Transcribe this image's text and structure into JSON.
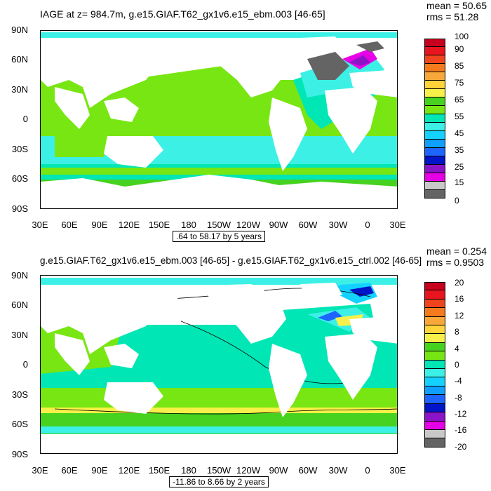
{
  "top": {
    "title": "IAGE at z= 984.7m, g.e15.GIAF.T62_gx1v6.e15_ebm.003 [46-65]",
    "mean": "mean = 50.65",
    "rms": "rms = 51.28",
    "range_label": ".64 to 58.17 by 5 years",
    "colorbar_labels": [
      "100",
      "90",
      "85",
      "75",
      "65",
      "55",
      "45",
      "35",
      "25",
      "15",
      "0"
    ],
    "colors": [
      "#c8001e",
      "#e8141e",
      "#f0441e",
      "#f57a1e",
      "#f8a83a",
      "#ffd53a",
      "#f8f04a",
      "#46d21e",
      "#78e612",
      "#00e6b4",
      "#3cf0e6",
      "#14d2ff",
      "#0fa0ff",
      "#1e64ff",
      "#0014c8",
      "#8c14c8",
      "#e600e6",
      "#c8c8c8",
      "#646464"
    ]
  },
  "bottom": {
    "title": "g.e15.GIAF.T62_gx1v6.e15_ebm.003 [46-65] - g.e15.GIAF.T62_gx1v6.e15_ctrl.002 [46-65]",
    "mean": "mean = 0.254",
    "rms": "rms = 0.9503",
    "range_label": "-11.86 to 8.66 by 2 years",
    "colorbar_labels": [
      "20",
      "16",
      "12",
      "8",
      "4",
      "0",
      "-4",
      "-8",
      "-12",
      "-16",
      "-20"
    ],
    "colors": [
      "#c8001e",
      "#e8141e",
      "#f0441e",
      "#f57a1e",
      "#f8a83a",
      "#ffd53a",
      "#f8f04a",
      "#46d21e",
      "#78e612",
      "#00e6b4",
      "#3cf0e6",
      "#14d2ff",
      "#0fa0ff",
      "#1e64ff",
      "#0014c8",
      "#8c14c8",
      "#e600e6",
      "#c8c8c8",
      "#646464"
    ]
  },
  "axes": {
    "lat_labels": [
      "90N",
      "60N",
      "30N",
      "0",
      "30S",
      "60S",
      "90S"
    ],
    "lon_labels": [
      "30E",
      "60E",
      "90E",
      "120E",
      "150E",
      "180",
      "150W",
      "120W",
      "90W",
      "60W",
      "30W",
      "0",
      "30E"
    ]
  },
  "map_colors": {
    "green": "#46d21e",
    "light_green": "#78e612",
    "aqua": "#00e6b4",
    "cyan": "#3cf0e6",
    "land": "#ffffff"
  }
}
